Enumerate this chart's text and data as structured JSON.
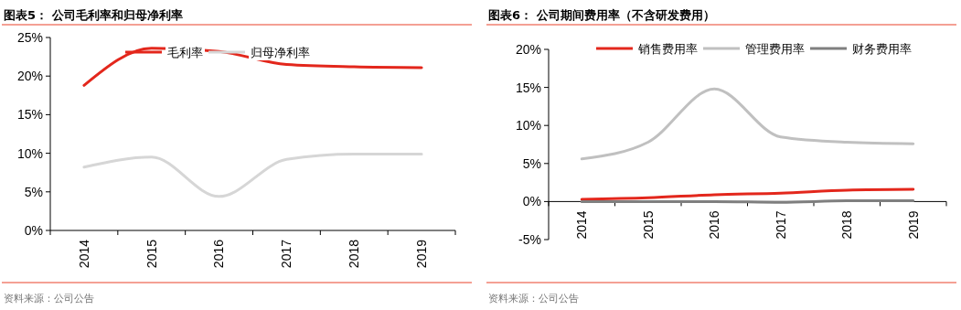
{
  "chart_data": [
    {
      "type": "line",
      "title": "图表5：  公司毛利率和归母净利率",
      "categories": [
        "2014",
        "2015",
        "2016",
        "2017",
        "2018",
        "2019"
      ],
      "ylim": [
        0,
        25
      ],
      "yticks": [
        {
          "value": 0,
          "label": "0%"
        },
        {
          "value": 5,
          "label": "5%"
        },
        {
          "value": 10,
          "label": "10%"
        },
        {
          "value": 15,
          "label": "15%"
        },
        {
          "value": 20,
          "label": "20%"
        },
        {
          "value": 25,
          "label": "25%"
        }
      ],
      "legend": "top",
      "annotations": [
        "资料来源：公司公告"
      ],
      "series": [
        {
          "name": "毛利率",
          "color": "#e3271c",
          "values": [
            18.8,
            23.6,
            23.2,
            21.5,
            21.2,
            21.1
          ]
        },
        {
          "name": "归母净利率",
          "color": "#d6d6d6",
          "values": [
            8.2,
            9.5,
            4.4,
            9.2,
            9.9,
            9.9
          ]
        }
      ]
    },
    {
      "type": "line",
      "title": "图表6：  公司期间费用率（不含研发费用）",
      "categories": [
        "2014",
        "2015",
        "2016",
        "2017",
        "2018",
        "2019"
      ],
      "ylim": [
        -5,
        20
      ],
      "yticks": [
        {
          "value": -5,
          "label": "-5%"
        },
        {
          "value": 0,
          "label": "0%"
        },
        {
          "value": 5,
          "label": "5%"
        },
        {
          "value": 10,
          "label": "10%"
        },
        {
          "value": 15,
          "label": "15%"
        },
        {
          "value": 20,
          "label": "20%"
        }
      ],
      "legend": "top",
      "annotations": [
        "资料来源：公司公告"
      ],
      "series": [
        {
          "name": "销售费用率",
          "color": "#e3271c",
          "values": [
            0.3,
            0.5,
            0.9,
            1.1,
            1.5,
            1.6
          ]
        },
        {
          "name": "管理费用率",
          "color": "#c0c0c0",
          "values": [
            5.6,
            7.8,
            14.8,
            8.5,
            7.8,
            7.6
          ]
        },
        {
          "name": "财务费用率",
          "color": "#7f7f7f",
          "values": [
            0,
            0,
            0,
            -0.1,
            0.1,
            0.1
          ]
        }
      ]
    }
  ]
}
